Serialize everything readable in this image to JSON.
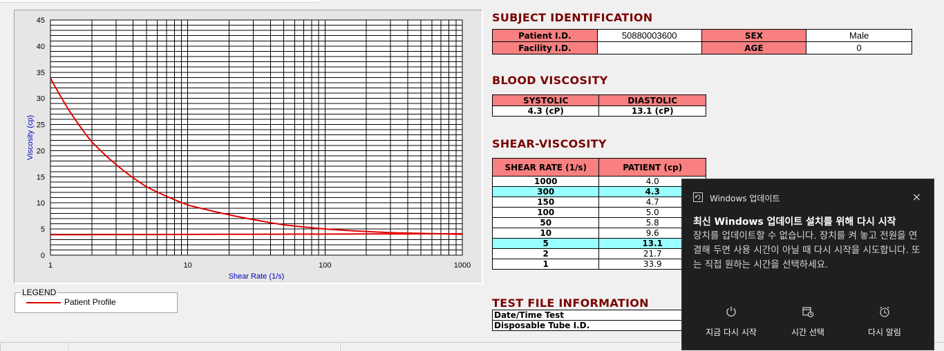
{
  "chart_data": {
    "type": "line",
    "xlabel": "Shear Rate (1/s)",
    "ylabel": "Viscosity (cp)",
    "x_scale": "log",
    "xlim": [
      1,
      1000
    ],
    "ylim": [
      0,
      45
    ],
    "x_ticks": [
      "1",
      "10",
      "100",
      "1000"
    ],
    "y_ticks": [
      "0",
      "5",
      "10",
      "15",
      "20",
      "25",
      "30",
      "35",
      "40",
      "45"
    ],
    "grid": true,
    "series": [
      {
        "name": "Patient Profile",
        "x": [
          1,
          2,
          5,
          10,
          50,
          100,
          150,
          300,
          1000
        ],
        "values": [
          33.9,
          21.7,
          13.1,
          9.6,
          5.8,
          5.0,
          4.7,
          4.3,
          4.0
        ]
      },
      {
        "x": [
          1,
          1000
        ],
        "values": [
          3.9,
          4.1
        ]
      }
    ]
  },
  "legend": {
    "title": "LEGEND",
    "items": [
      "Patient Profile"
    ]
  },
  "subject": {
    "title": "SUBJECT IDENTIFICATION",
    "patient_id_label": "Patient I.D.",
    "patient_id": "50880003600",
    "sex_label": "SEX",
    "sex": "Male",
    "facility_label": "Facility I.D.",
    "facility": "",
    "age_label": "AGE",
    "age": "0"
  },
  "blood": {
    "title": "BLOOD VISCOSITY",
    "systolic_label": "SYSTOLIC",
    "diastolic_label": "DIASTOLIC",
    "systolic": "4.3 (cP)",
    "diastolic": "13.1 (cP)"
  },
  "shear": {
    "title": "SHEAR-VISCOSITY",
    "col1": "SHEAR RATE (1/s)",
    "col2": "PATIENT (cp)",
    "rows": [
      {
        "rate": "1000",
        "patient": "4.0"
      },
      {
        "rate": "300",
        "patient": "4.3"
      },
      {
        "rate": "150",
        "patient": "4.7"
      },
      {
        "rate": "100",
        "patient": "5.0"
      },
      {
        "rate": "50",
        "patient": "5.8"
      },
      {
        "rate": "10",
        "patient": "9.6"
      },
      {
        "rate": "5",
        "patient": "13.1"
      },
      {
        "rate": "2",
        "patient": "21.7"
      },
      {
        "rate": "1",
        "patient": "33.9"
      }
    ]
  },
  "testfile": {
    "title": "TEST FILE INFORMATION",
    "date_label": "Date/Time Test",
    "tube_label": "Disposable Tube I.D."
  },
  "toast": {
    "app": "Windows 업데이트",
    "title": "최신 Windows 업데이트 설치를 위해 다시 시작",
    "body": "장치를 업데이트할 수 없습니다. 장치를 켜 놓고 전원을 연결해 두면 사용 시간이 아닐 때 다시 시작을 시도합니다. 또는 직접 원하는 시간을 선택하세요.",
    "btn_restart": "지금 다시 시작",
    "btn_schedule": "시간 선택",
    "btn_snooze": "다시 알림",
    "close": "×"
  },
  "colors": {
    "curve": "#e00000",
    "header_fill": "#f88080",
    "highlight_row": "#99ffff",
    "section_title": "#7a0000",
    "axis_text": "#0000c0"
  }
}
